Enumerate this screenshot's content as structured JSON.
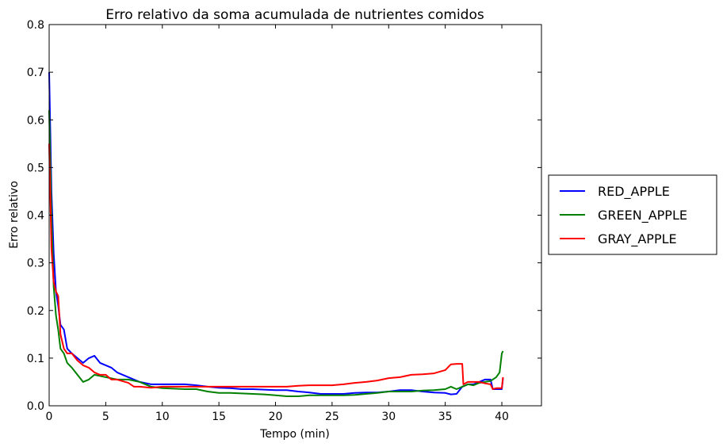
{
  "chart_data": {
    "type": "line",
    "title": "Erro relativo da soma acumulada de nutrientes comidos",
    "xlabel": "Tempo (min)",
    "ylabel": "Erro relativo",
    "xlim": [
      0,
      43.5
    ],
    "ylim": [
      0,
      0.8
    ],
    "xticks": [
      0,
      5,
      10,
      15,
      20,
      25,
      30,
      35,
      40
    ],
    "yticks": [
      0.0,
      0.1,
      0.2,
      0.3,
      0.4,
      0.5,
      0.6,
      0.7,
      0.8
    ],
    "xtick_labels": [
      "0",
      "5",
      "10",
      "15",
      "20",
      "25",
      "30",
      "35",
      "40"
    ],
    "ytick_labels": [
      "0.0",
      "0.1",
      "0.2",
      "0.3",
      "0.4",
      "0.5",
      "0.6",
      "0.7",
      "0.8"
    ],
    "grid": false,
    "legend_position": "outside-right",
    "series": [
      {
        "name": "RED_APPLE",
        "color": "#0000ff",
        "points": [
          [
            0,
            0.7
          ],
          [
            0.2,
            0.45
          ],
          [
            0.4,
            0.32
          ],
          [
            0.6,
            0.24
          ],
          [
            0.8,
            0.21
          ],
          [
            1.0,
            0.17
          ],
          [
            1.3,
            0.16
          ],
          [
            1.6,
            0.12
          ],
          [
            2.0,
            0.11
          ],
          [
            2.5,
            0.1
          ],
          [
            3.0,
            0.09
          ],
          [
            3.5,
            0.1
          ],
          [
            4.0,
            0.105
          ],
          [
            4.5,
            0.09
          ],
          [
            5.0,
            0.085
          ],
          [
            5.5,
            0.08
          ],
          [
            6.0,
            0.07
          ],
          [
            7.0,
            0.06
          ],
          [
            8.0,
            0.05
          ],
          [
            9.0,
            0.045
          ],
          [
            10.0,
            0.045
          ],
          [
            11.0,
            0.045
          ],
          [
            12.0,
            0.045
          ],
          [
            13.0,
            0.043
          ],
          [
            14.0,
            0.04
          ],
          [
            15.0,
            0.038
          ],
          [
            16.0,
            0.037
          ],
          [
            17.0,
            0.035
          ],
          [
            18.0,
            0.035
          ],
          [
            19.0,
            0.034
          ],
          [
            20.0,
            0.033
          ],
          [
            21.0,
            0.033
          ],
          [
            22.0,
            0.03
          ],
          [
            23.0,
            0.028
          ],
          [
            24.0,
            0.025
          ],
          [
            25.0,
            0.025
          ],
          [
            26.0,
            0.025
          ],
          [
            27.0,
            0.027
          ],
          [
            28.0,
            0.028
          ],
          [
            29.0,
            0.028
          ],
          [
            30.0,
            0.03
          ],
          [
            31.0,
            0.033
          ],
          [
            32.0,
            0.033
          ],
          [
            33.0,
            0.03
          ],
          [
            34.0,
            0.028
          ],
          [
            35.0,
            0.027
          ],
          [
            35.5,
            0.024
          ],
          [
            36.0,
            0.025
          ],
          [
            36.5,
            0.04
          ],
          [
            37.0,
            0.045
          ],
          [
            37.5,
            0.045
          ],
          [
            38.0,
            0.05
          ],
          [
            38.5,
            0.055
          ],
          [
            39.0,
            0.055
          ],
          [
            39.2,
            0.035
          ],
          [
            39.5,
            0.035
          ],
          [
            40.0,
            0.035
          ],
          [
            40.1,
            0.058
          ]
        ]
      },
      {
        "name": "GREEN_APPLE",
        "color": "#008000",
        "points": [
          [
            0,
            0.62
          ],
          [
            0.2,
            0.4
          ],
          [
            0.4,
            0.25
          ],
          [
            0.6,
            0.19
          ],
          [
            0.8,
            0.16
          ],
          [
            1.0,
            0.12
          ],
          [
            1.3,
            0.11
          ],
          [
            1.6,
            0.09
          ],
          [
            2.0,
            0.08
          ],
          [
            2.5,
            0.065
          ],
          [
            3.0,
            0.05
          ],
          [
            3.5,
            0.055
          ],
          [
            4.0,
            0.065
          ],
          [
            5.0,
            0.06
          ],
          [
            6.0,
            0.055
          ],
          [
            7.0,
            0.055
          ],
          [
            8.0,
            0.05
          ],
          [
            9.0,
            0.04
          ],
          [
            10.0,
            0.037
          ],
          [
            11.0,
            0.036
          ],
          [
            12.0,
            0.035
          ],
          [
            13.0,
            0.035
          ],
          [
            14.0,
            0.03
          ],
          [
            15.0,
            0.027
          ],
          [
            16.0,
            0.027
          ],
          [
            17.0,
            0.026
          ],
          [
            18.0,
            0.025
          ],
          [
            19.0,
            0.024
          ],
          [
            20.0,
            0.022
          ],
          [
            21.0,
            0.02
          ],
          [
            22.0,
            0.02
          ],
          [
            23.0,
            0.022
          ],
          [
            24.0,
            0.022
          ],
          [
            25.0,
            0.022
          ],
          [
            26.0,
            0.022
          ],
          [
            27.0,
            0.023
          ],
          [
            28.0,
            0.025
          ],
          [
            29.0,
            0.027
          ],
          [
            30.0,
            0.03
          ],
          [
            31.0,
            0.03
          ],
          [
            32.0,
            0.03
          ],
          [
            33.0,
            0.032
          ],
          [
            34.0,
            0.033
          ],
          [
            35.0,
            0.035
          ],
          [
            35.5,
            0.04
          ],
          [
            36.0,
            0.035
          ],
          [
            36.5,
            0.04
          ],
          [
            37.0,
            0.045
          ],
          [
            37.5,
            0.043
          ],
          [
            38.0,
            0.048
          ],
          [
            38.5,
            0.05
          ],
          [
            39.0,
            0.052
          ],
          [
            39.5,
            0.06
          ],
          [
            39.8,
            0.07
          ],
          [
            40.0,
            0.11
          ],
          [
            40.1,
            0.115
          ]
        ]
      },
      {
        "name": "GRAY_APPLE",
        "color": "#ff0000",
        "points": [
          [
            0,
            0.55
          ],
          [
            0.2,
            0.33
          ],
          [
            0.4,
            0.26
          ],
          [
            0.6,
            0.24
          ],
          [
            0.8,
            0.23
          ],
          [
            1.0,
            0.15
          ],
          [
            1.3,
            0.12
          ],
          [
            1.6,
            0.11
          ],
          [
            2.0,
            0.11
          ],
          [
            2.5,
            0.095
          ],
          [
            3.0,
            0.085
          ],
          [
            3.5,
            0.08
          ],
          [
            4.0,
            0.07
          ],
          [
            4.5,
            0.065
          ],
          [
            5.0,
            0.065
          ],
          [
            5.5,
            0.055
          ],
          [
            6.0,
            0.055
          ],
          [
            7.0,
            0.048
          ],
          [
            7.5,
            0.04
          ],
          [
            8.0,
            0.04
          ],
          [
            9.0,
            0.038
          ],
          [
            10.0,
            0.04
          ],
          [
            11.0,
            0.04
          ],
          [
            12.0,
            0.04
          ],
          [
            13.0,
            0.04
          ],
          [
            14.0,
            0.04
          ],
          [
            15.0,
            0.04
          ],
          [
            16.0,
            0.04
          ],
          [
            17.0,
            0.04
          ],
          [
            18.0,
            0.04
          ],
          [
            19.0,
            0.04
          ],
          [
            20.0,
            0.04
          ],
          [
            21.0,
            0.04
          ],
          [
            22.0,
            0.042
          ],
          [
            23.0,
            0.043
          ],
          [
            24.0,
            0.043
          ],
          [
            25.0,
            0.043
          ],
          [
            26.0,
            0.045
          ],
          [
            27.0,
            0.048
          ],
          [
            28.0,
            0.05
          ],
          [
            29.0,
            0.053
          ],
          [
            30.0,
            0.058
          ],
          [
            31.0,
            0.06
          ],
          [
            32.0,
            0.065
          ],
          [
            33.0,
            0.066
          ],
          [
            34.0,
            0.068
          ],
          [
            35.0,
            0.075
          ],
          [
            35.5,
            0.087
          ],
          [
            36.0,
            0.088
          ],
          [
            36.5,
            0.088
          ],
          [
            36.6,
            0.045
          ],
          [
            37.0,
            0.05
          ],
          [
            38.0,
            0.05
          ],
          [
            38.5,
            0.047
          ],
          [
            39.0,
            0.045
          ],
          [
            39.2,
            0.035
          ],
          [
            39.5,
            0.037
          ],
          [
            40.0,
            0.037
          ],
          [
            40.1,
            0.06
          ]
        ]
      }
    ]
  }
}
